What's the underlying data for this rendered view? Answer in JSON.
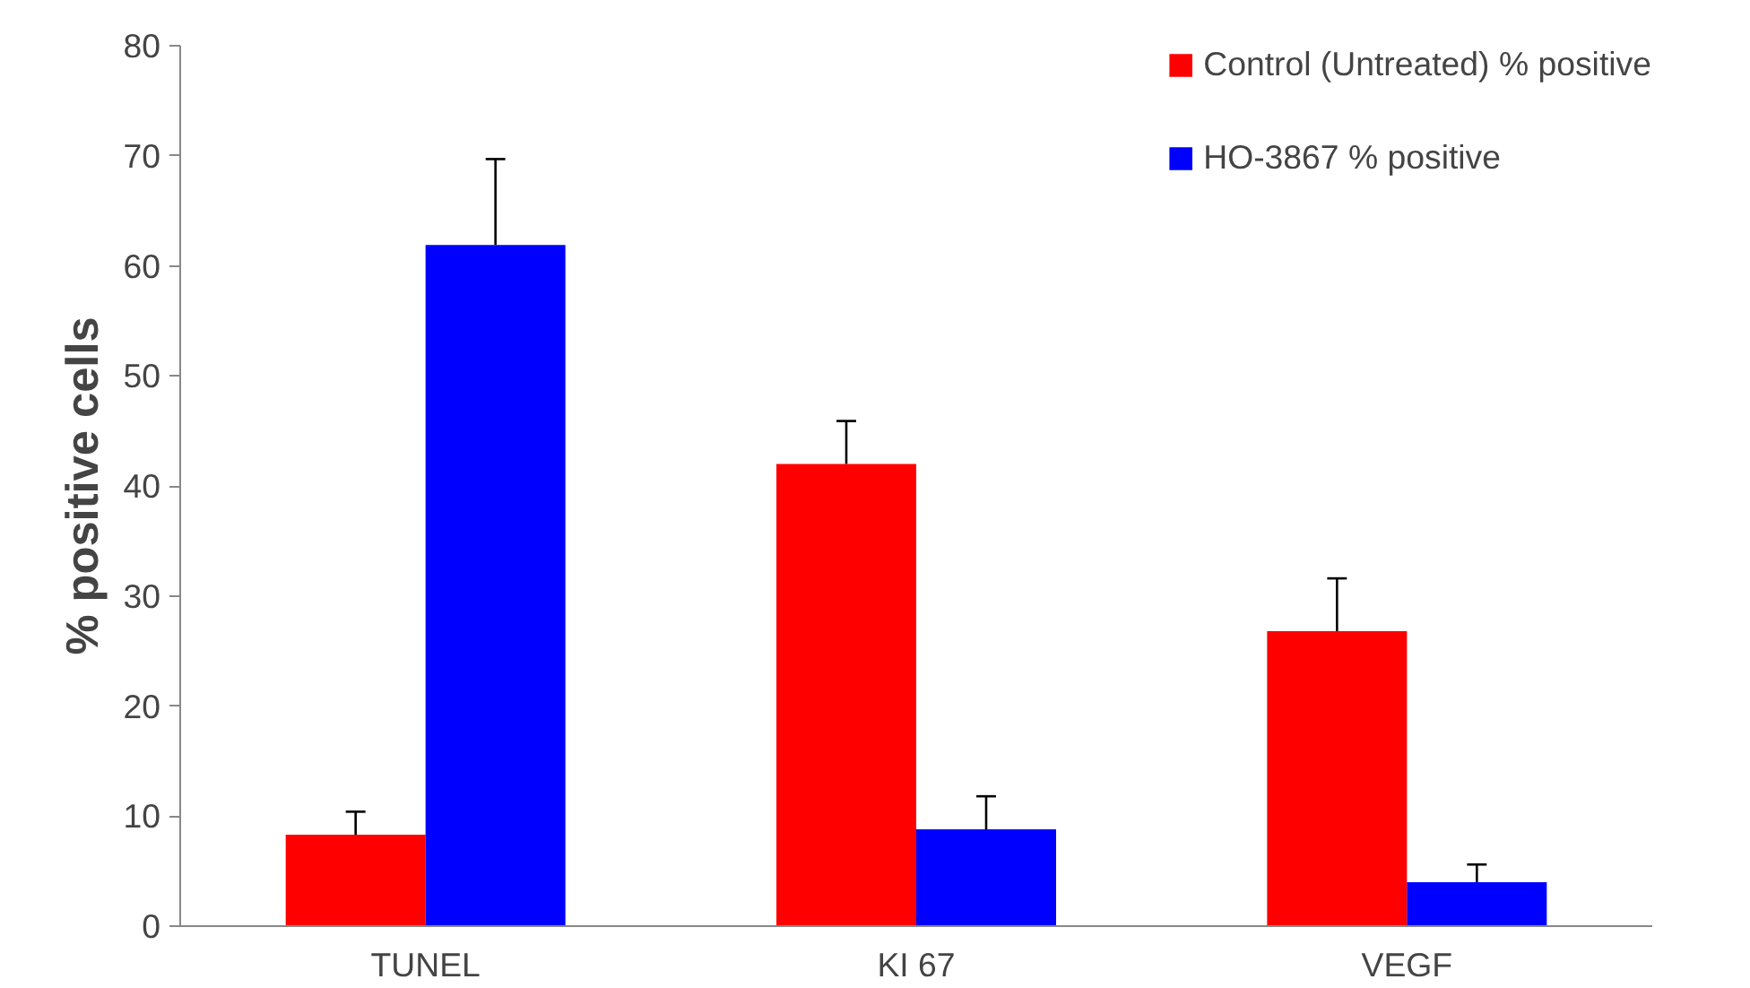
{
  "chart_data": {
    "type": "bar",
    "ylabel": "% positive cells",
    "categories": [
      "TUNEL",
      "KI 67",
      "VEGF"
    ],
    "series": [
      {
        "name": "Control (Untreated) % positive",
        "color": "#ff0000",
        "values": [
          8.3,
          42.0,
          26.8
        ],
        "errors": [
          [
            8.3,
            10.4
          ],
          [
            42.0,
            45.9
          ],
          [
            26.8,
            31.6
          ]
        ]
      },
      {
        "name": "HO-3867 % positive",
        "color": "#0000ff",
        "values": [
          61.9,
          8.8,
          4.0
        ],
        "errors": [
          [
            61.9,
            69.7
          ],
          [
            8.8,
            11.8
          ],
          [
            4.0,
            5.6
          ]
        ]
      }
    ],
    "ylim": [
      0,
      80
    ],
    "yticks": [
      0,
      10,
      20,
      30,
      40,
      50,
      60,
      70,
      80
    ],
    "grid": false,
    "legend": "top right"
  }
}
